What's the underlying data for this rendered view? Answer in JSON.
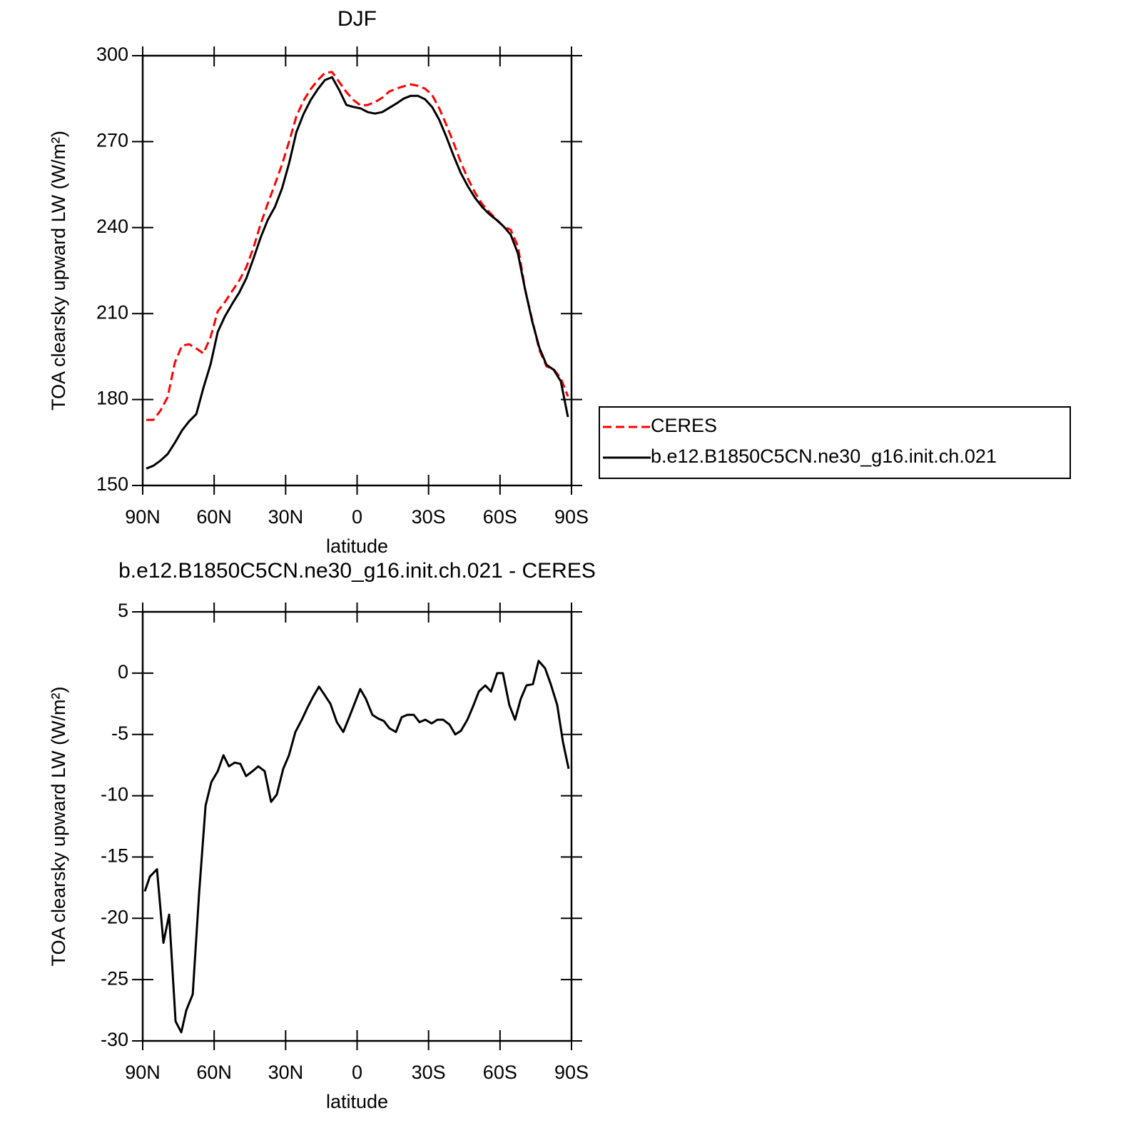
{
  "chart_data": [
    {
      "type": "line",
      "title": "DJF",
      "xlabel": "latitude",
      "ylabel": "TOA clearsky upward LW (W/m²)",
      "xlim": [
        90,
        -90
      ],
      "xticks": [
        {
          "value": 90,
          "label": "90N"
        },
        {
          "value": 60,
          "label": "60N"
        },
        {
          "value": 30,
          "label": "30N"
        },
        0,
        {
          "value": -30,
          "label": "30S"
        },
        {
          "value": -60,
          "label": "60S"
        },
        {
          "value": -90,
          "label": "90S"
        }
      ],
      "ylim": [
        150,
        300
      ],
      "yticks": [
        150,
        180,
        210,
        240,
        270,
        300
      ],
      "legend": "right",
      "x": [
        88.5,
        85.5,
        82.5,
        79.5,
        76.5,
        73.5,
        70.5,
        67.5,
        64.5,
        61.5,
        58.5,
        55.5,
        52.5,
        49.5,
        46.5,
        43.5,
        40.5,
        37.5,
        34.5,
        31.5,
        28.5,
        25.5,
        22.5,
        19.5,
        16.5,
        13.5,
        10.5,
        7.5,
        4.5,
        1.5,
        -1.5,
        -4.5,
        -7.5,
        -10.5,
        -13.5,
        -16.5,
        -19.5,
        -22.5,
        -25.5,
        -28.5,
        -31.5,
        -34.5,
        -37.5,
        -40.5,
        -43.5,
        -46.5,
        -49.5,
        -52.5,
        -55.5,
        -58.5,
        -61.5,
        -64.5,
        -67.5,
        -70.5,
        -73.5,
        -76.5,
        -79.5,
        -82.5,
        -85.5,
        -88.5
      ],
      "series": [
        {
          "name": "CERES",
          "color": "#ff0000",
          "linestyle": "dashed",
          "values": [
            172.9,
            172.9,
            176.2,
            180.9,
            192.9,
            198.8,
            199.3,
            197.8,
            196.1,
            201.8,
            210.8,
            214.0,
            217.8,
            221.5,
            226.2,
            233.0,
            241.2,
            248.4,
            255.1,
            262.1,
            270.1,
            278.8,
            284.3,
            288.3,
            291.5,
            294.0,
            294.3,
            290.8,
            287.3,
            284.5,
            282.6,
            282.8,
            283.8,
            285.3,
            287.5,
            288.5,
            289.3,
            290.0,
            289.5,
            288.5,
            286.3,
            281.6,
            275.8,
            269.6,
            262.9,
            257.1,
            252.2,
            248.2,
            245.4,
            242.9,
            240.4,
            239.2,
            233.5,
            218.5,
            207.8,
            197.3,
            191.6,
            190.6,
            187.4,
            181.1
          ]
        },
        {
          "name": "b.e12.B1850C5CN.ne30_g16.init.ch.021",
          "color": "#000000",
          "linestyle": "solid",
          "values": [
            155.9,
            156.9,
            158.7,
            161.0,
            164.9,
            169.2,
            172.4,
            174.9,
            184.1,
            192.3,
            203.6,
            209.0,
            213.3,
            217.3,
            222.3,
            229.2,
            236.5,
            242.7,
            247.2,
            253.7,
            262.6,
            273.3,
            279.6,
            284.5,
            288.3,
            291.5,
            292.5,
            288.0,
            282.8,
            282.1,
            281.6,
            280.3,
            279.8,
            280.3,
            281.8,
            283.3,
            285.0,
            286.0,
            286.0,
            284.8,
            282.1,
            277.6,
            271.6,
            265.1,
            259.1,
            254.4,
            250.4,
            247.2,
            244.7,
            242.7,
            240.4,
            237.5,
            231.0,
            218.5,
            207.3,
            198.1,
            192.1,
            190.4,
            186.4,
            173.9
          ]
        }
      ]
    },
    {
      "type": "line",
      "title": "b.e12.B1850C5CN.ne30_g16.init.ch.021 - CERES",
      "xlabel": "latitude",
      "ylabel": "TOA clearsky upward LW (W/m²)",
      "xlim": [
        90,
        -90
      ],
      "xticks": [
        {
          "value": 90,
          "label": "90N"
        },
        {
          "value": 60,
          "label": "60N"
        },
        {
          "value": 30,
          "label": "30N"
        },
        0,
        {
          "value": -30,
          "label": "30S"
        },
        {
          "value": -60,
          "label": "60S"
        },
        {
          "value": -90,
          "label": "90S"
        }
      ],
      "ylim": [
        -30,
        5
      ],
      "yticks": [
        -30,
        -25,
        -20,
        -15,
        -10,
        -5,
        0,
        5
      ],
      "x": [
        89.1,
        87.0,
        84.0,
        81.3,
        78.9,
        76.2,
        73.8,
        71.7,
        69.0,
        66.3,
        63.6,
        61.2,
        58.5,
        56.1,
        53.8,
        51.4,
        49.0,
        46.6,
        43.9,
        41.5,
        38.8,
        36.1,
        33.7,
        31.0,
        28.6,
        25.9,
        23.2,
        20.8,
        18.4,
        16.0,
        13.9,
        11.2,
        8.5,
        5.8,
        3.1,
        1.1,
        -1.3,
        -3.7,
        -6.4,
        -8.8,
        -11.2,
        -13.6,
        -16.3,
        -18.7,
        -21.1,
        -23.8,
        -26.2,
        -28.6,
        -31.3,
        -33.7,
        -36.1,
        -38.8,
        -41.2,
        -43.6,
        -46.3,
        -48.7,
        -51.1,
        -53.8,
        -56.2,
        -58.8,
        -61.2,
        -63.9,
        -66.3,
        -68.7,
        -71.1,
        -73.8,
        -76.2,
        -78.9,
        -81.3,
        -84.0,
        -86.4,
        -88.8
      ],
      "series": [
        {
          "color": "#000000",
          "linestyle": "solid",
          "values": [
            -17.8,
            -16.6,
            -16.0,
            -22.0,
            -19.7,
            -28.4,
            -29.3,
            -27.5,
            -26.2,
            -17.9,
            -10.8,
            -8.9,
            -8.0,
            -6.7,
            -7.6,
            -7.3,
            -7.4,
            -8.4,
            -8.0,
            -7.6,
            -8.0,
            -10.5,
            -9.9,
            -7.8,
            -6.7,
            -4.8,
            -3.8,
            -2.8,
            -1.9,
            -1.1,
            -1.7,
            -2.5,
            -4.0,
            -4.8,
            -3.5,
            -2.5,
            -1.3,
            -2.1,
            -3.4,
            -3.7,
            -3.9,
            -4.5,
            -4.8,
            -3.6,
            -3.4,
            -3.4,
            -4.0,
            -3.8,
            -4.1,
            -3.8,
            -3.8,
            -4.2,
            -5.0,
            -4.7,
            -3.8,
            -2.7,
            -1.5,
            -1.0,
            -1.5,
            0.0,
            0.0,
            -2.6,
            -3.8,
            -2.1,
            -1.0,
            -0.9,
            1.0,
            0.4,
            -0.9,
            -2.6,
            -5.6,
            -7.8
          ]
        }
      ]
    }
  ]
}
